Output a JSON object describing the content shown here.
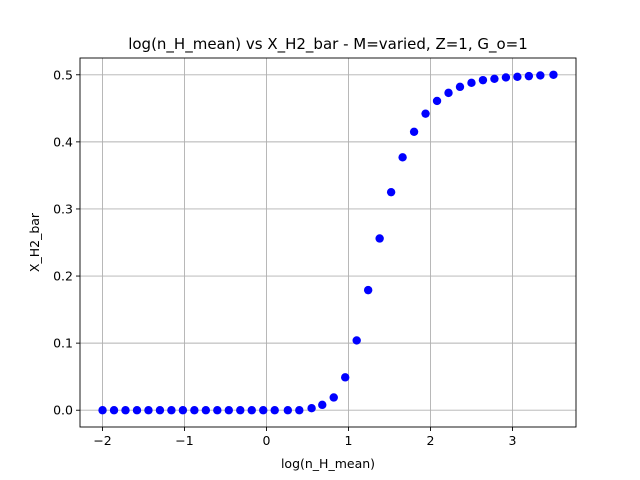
{
  "chart_data": {
    "type": "scatter",
    "title": "log(n_H_mean) vs X_H2_bar - M=varied, Z=1, G_o=1",
    "xlabel": "log(n_H_mean)",
    "ylabel": "X_H2_bar",
    "xlim": [
      -2.275,
      3.775
    ],
    "ylim": [
      -0.025,
      0.525
    ],
    "xticks": [
      "-2",
      "-1",
      "0",
      "1",
      "2",
      "3"
    ],
    "xtick_values": [
      -2,
      -1,
      0,
      1,
      2,
      3
    ],
    "yticks": [
      "0.0",
      "0.1",
      "0.2",
      "0.3",
      "0.4",
      "0.5"
    ],
    "ytick_values": [
      0.0,
      0.1,
      0.2,
      0.3,
      0.4,
      0.5
    ],
    "grid": true,
    "marker_color": "#0000ff",
    "series": [
      {
        "x": [
          -2.0,
          -1.86,
          -1.72,
          -1.58,
          -1.44,
          -1.3,
          -1.16,
          -1.02,
          -0.88,
          -0.74,
          -0.6,
          -0.46,
          -0.32,
          -0.18,
          -0.04,
          0.1,
          0.26,
          0.4,
          0.55,
          0.68,
          0.82,
          0.96,
          1.1,
          1.24,
          1.38,
          1.52,
          1.66,
          1.8,
          1.94,
          2.08,
          2.22,
          2.36,
          2.5,
          2.64,
          2.78,
          2.92,
          3.06,
          3.2,
          3.34,
          3.5
        ],
        "y": [
          0.0,
          0.0,
          0.0,
          0.0,
          0.0,
          0.0,
          0.0,
          0.0,
          0.0,
          0.0,
          0.0,
          0.0,
          0.0,
          0.0,
          0.0,
          0.0,
          0.0,
          0.0,
          0.003,
          0.008,
          0.019,
          0.049,
          0.104,
          0.179,
          0.256,
          0.325,
          0.377,
          0.415,
          0.442,
          0.461,
          0.473,
          0.482,
          0.488,
          0.492,
          0.494,
          0.496,
          0.497,
          0.498,
          0.499,
          0.5
        ]
      }
    ]
  }
}
